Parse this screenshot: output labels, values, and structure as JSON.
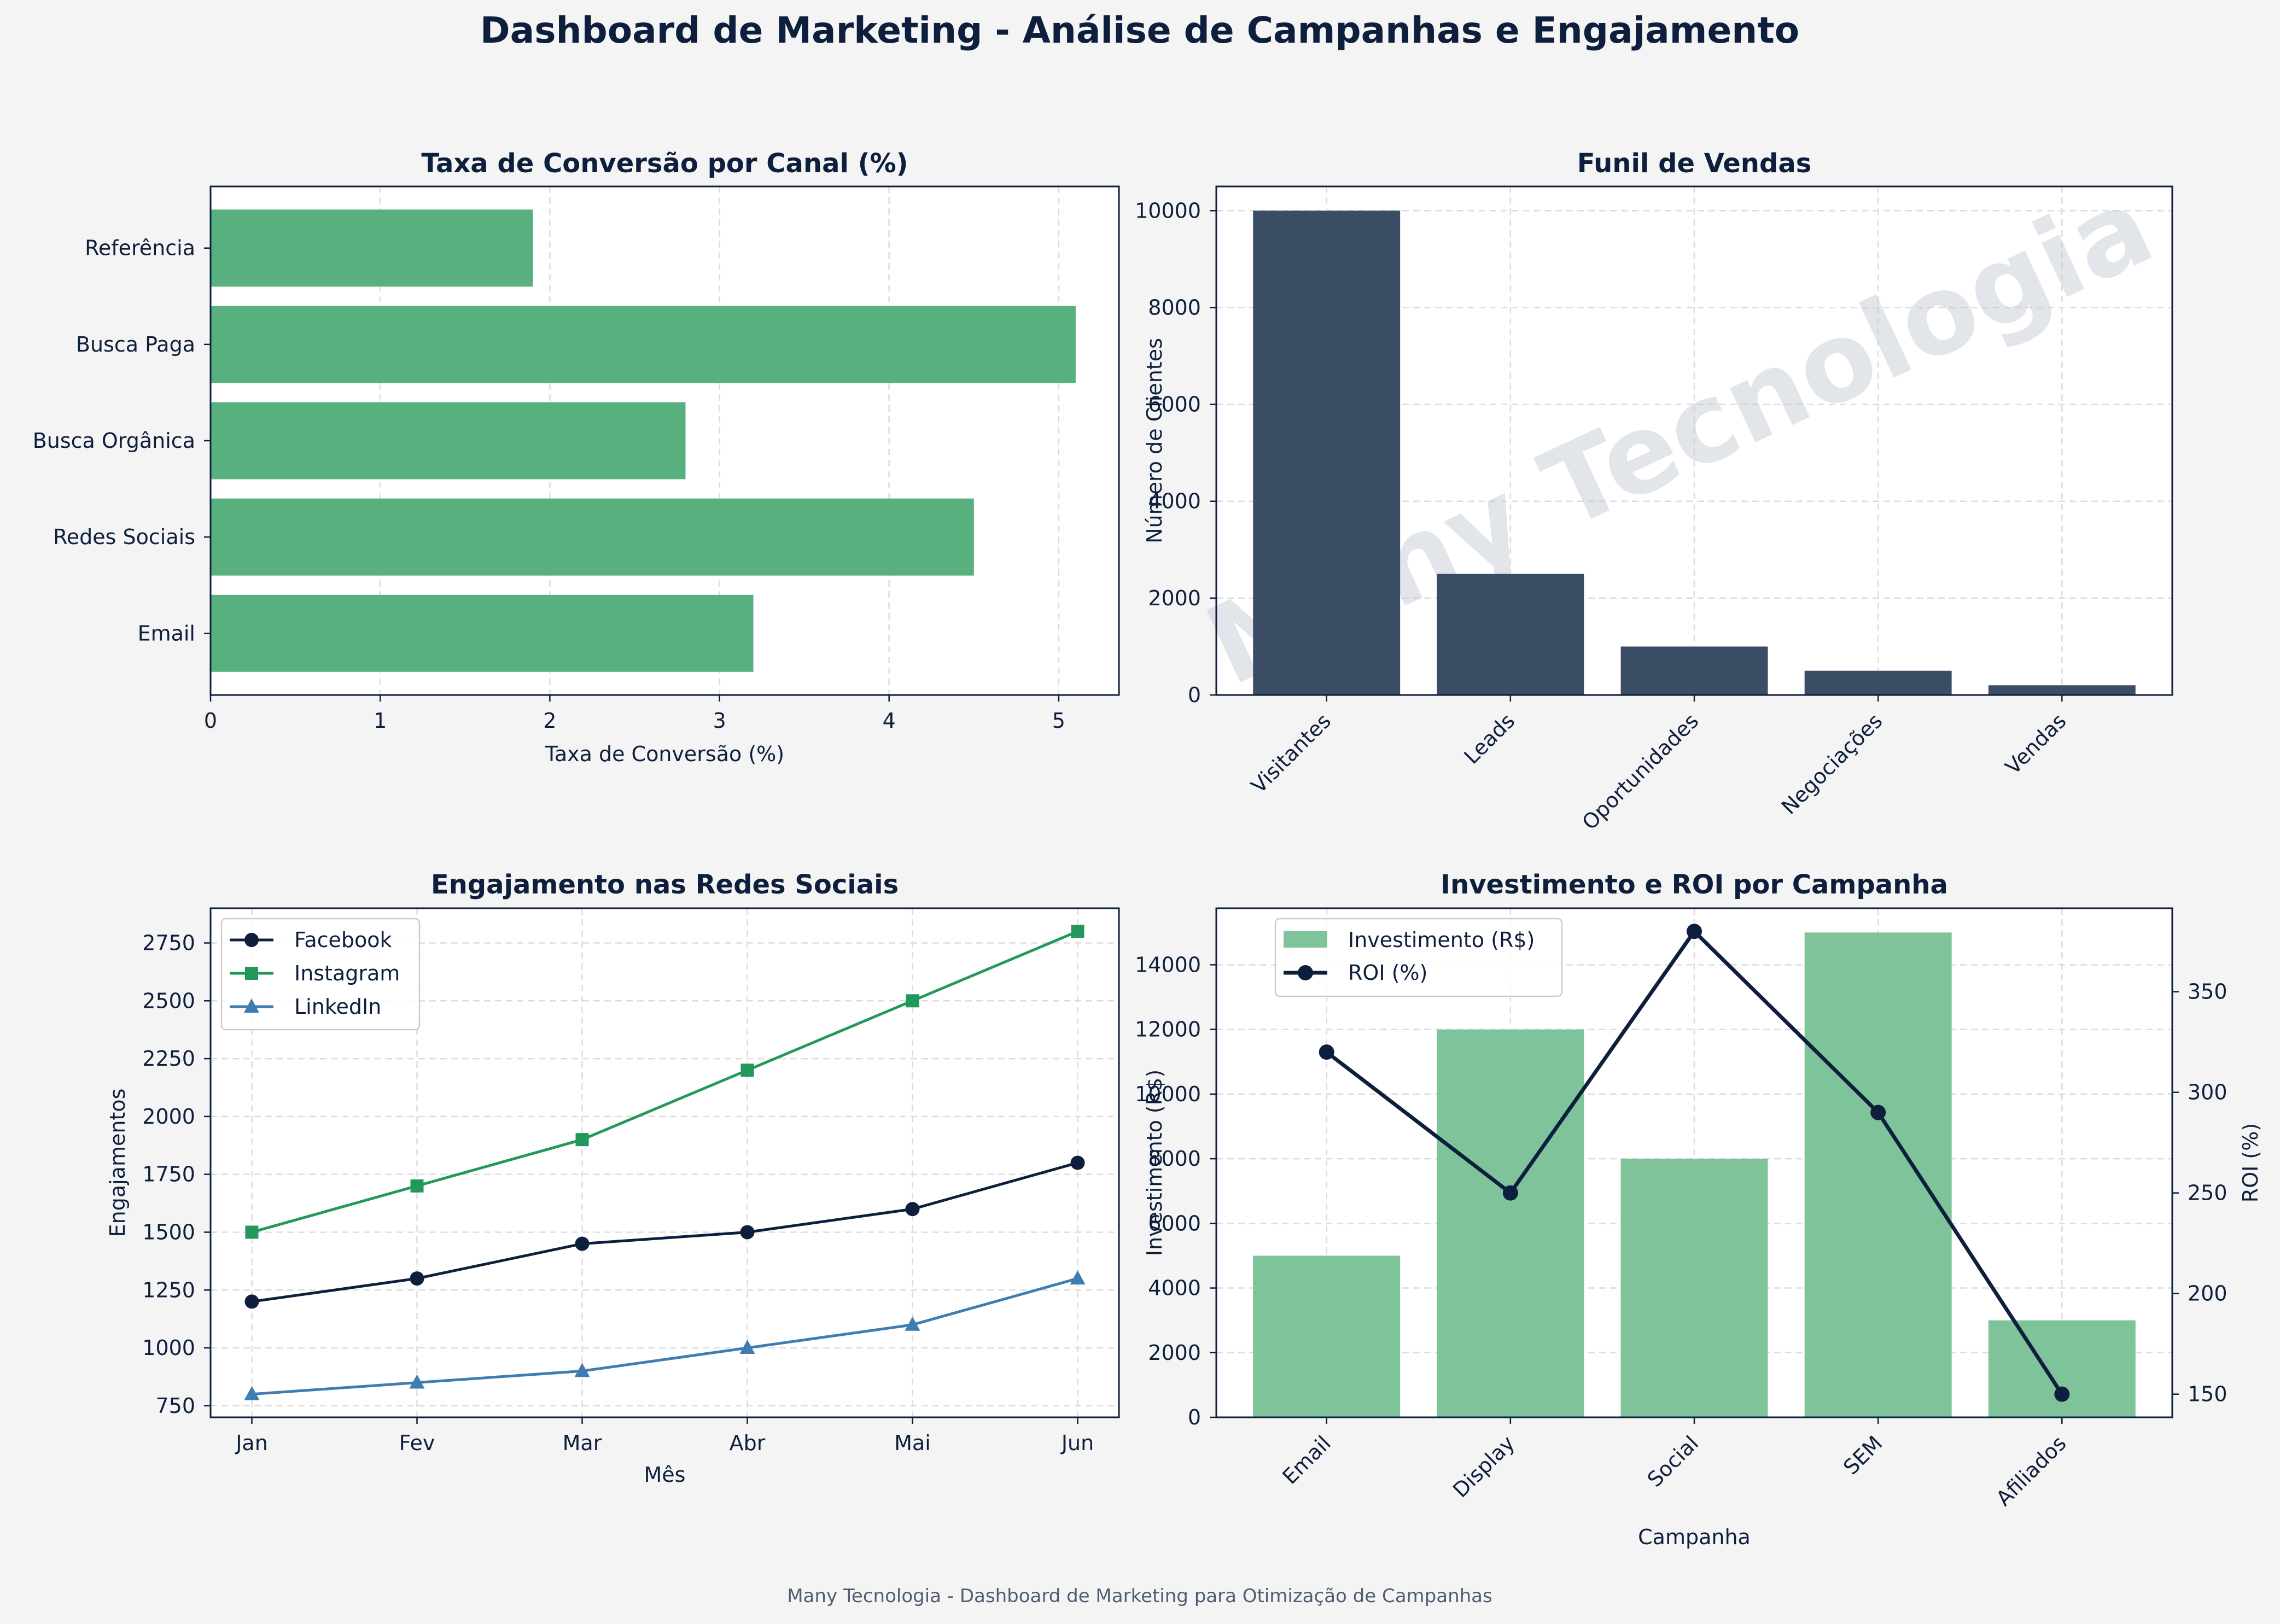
{
  "page": {
    "title": "Dashboard de Marketing - Análise de Campanhas e Engajamento",
    "footer": "Many Tecnologia - Dashboard de Marketing para Otimização de Campanhas",
    "watermark": "Many Tecnologia"
  },
  "colors": {
    "navy": "#0e1f3d",
    "green": "#22995a",
    "green_bar": "#58b07e",
    "green_light": "#7fc39b",
    "slate": "#3b4c65",
    "blue": "#3f7db0",
    "background": "#f4f4f4",
    "grid": "#dddddd"
  },
  "chart_data": [
    {
      "id": "conversion",
      "type": "bar",
      "orientation": "horizontal",
      "title": "Taxa de Conversão por Canal (%)",
      "xlabel": "Taxa de Conversão (%)",
      "ylabel": "",
      "categories": [
        "Email",
        "Redes Sociais",
        "Busca Orgânica",
        "Busca Paga",
        "Referência"
      ],
      "values": [
        3.2,
        4.5,
        2.8,
        5.1,
        1.9
      ],
      "xlim": [
        0,
        5.355
      ],
      "xticks": [
        0,
        1,
        2,
        3,
        4,
        5
      ],
      "grid": true
    },
    {
      "id": "funnel",
      "type": "bar",
      "title": "Funil de Vendas",
      "xlabel": "",
      "ylabel": "Número de Clientes",
      "categories": [
        "Visitantes",
        "Leads",
        "Oportunidades",
        "Negociações",
        "Vendas"
      ],
      "values": [
        10000,
        2500,
        1000,
        500,
        200
      ],
      "ylim": [
        0,
        10500
      ],
      "yticks": [
        0,
        2000,
        4000,
        6000,
        8000,
        10000
      ],
      "grid": true
    },
    {
      "id": "engagement",
      "type": "line",
      "title": "Engajamento nas Redes Sociais",
      "xlabel": "Mês",
      "ylabel": "Engajamentos",
      "categories": [
        "Jan",
        "Fev",
        "Mar",
        "Abr",
        "Mai",
        "Jun"
      ],
      "series": [
        {
          "name": "Facebook",
          "values": [
            1200,
            1300,
            1450,
            1500,
            1600,
            1800
          ],
          "marker": "circle"
        },
        {
          "name": "Instagram",
          "values": [
            1500,
            1700,
            1900,
            2200,
            2500,
            2800
          ],
          "marker": "square"
        },
        {
          "name": "LinkedIn",
          "values": [
            800,
            850,
            900,
            1000,
            1100,
            1300
          ],
          "marker": "triangle"
        }
      ],
      "ylim": [
        700,
        2900
      ],
      "yticks": [
        750,
        1000,
        1250,
        1500,
        1750,
        2000,
        2250,
        2500,
        2750
      ],
      "legend": "top-left",
      "grid": true
    },
    {
      "id": "roi",
      "type": "bar",
      "title": "Investimento e ROI por Campanha",
      "xlabel": "Campanha",
      "ylabel": "Investimento (R$)",
      "ylabel_right": "ROI (%)",
      "categories": [
        "Email",
        "Display",
        "Social",
        "SEM",
        "Afiliados"
      ],
      "series": [
        {
          "name": "Investimento (R$)",
          "type": "bar",
          "axis": "left",
          "values": [
            5000,
            12000,
            8000,
            15000,
            3000
          ]
        },
        {
          "name": "ROI (%)",
          "type": "line",
          "axis": "right",
          "values": [
            320,
            250,
            380,
            290,
            150
          ]
        }
      ],
      "ylim": [
        0,
        15750
      ],
      "yticks": [
        0,
        2000,
        4000,
        6000,
        8000,
        10000,
        12000,
        14000
      ],
      "ylim_right": [
        138.5,
        391.5
      ],
      "yticks_right": [
        150,
        200,
        250,
        300,
        350
      ],
      "legend": "top-left",
      "grid": true
    }
  ]
}
